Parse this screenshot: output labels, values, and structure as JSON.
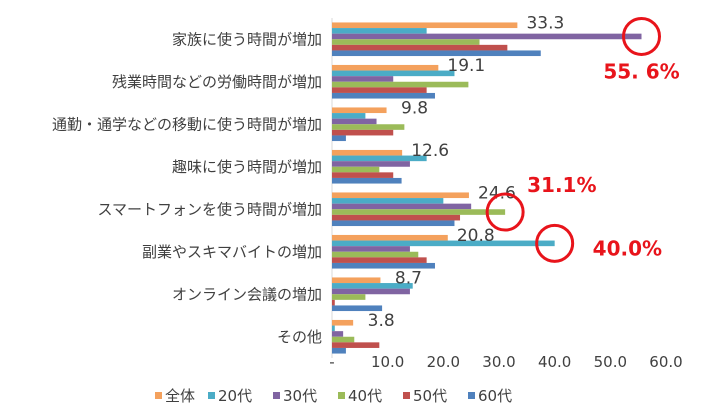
{
  "chart_data": {
    "type": "bar",
    "orientation": "horizontal",
    "categories": [
      "家族に使う時間が増加",
      "残業時間などの労働時間が増加",
      "通勤・通学などの移動に使う時間が増加",
      "趣味に使う時間が増加",
      "スマートフォンを使う時間が増加",
      "副業やスキマバイトの増加",
      "オンライン会議の増加",
      "その他"
    ],
    "series": [
      {
        "name": "全体",
        "color": "#f4a15d",
        "values": [
          33.3,
          19.1,
          9.8,
          12.6,
          24.6,
          20.8,
          8.7,
          3.8
        ]
      },
      {
        "name": "20代",
        "color": "#4bacc6",
        "values": [
          17.0,
          22.0,
          6.0,
          17.0,
          20.0,
          40.0,
          14.5,
          0.5
        ]
      },
      {
        "name": "30代",
        "color": "#8064a2",
        "values": [
          55.6,
          11.0,
          8.0,
          14.0,
          25.0,
          14.0,
          14.0,
          2.0
        ]
      },
      {
        "name": "40代",
        "color": "#9bbb59",
        "values": [
          26.5,
          24.5,
          13.0,
          8.5,
          31.1,
          15.5,
          6.0,
          4.0
        ]
      },
      {
        "name": "50代",
        "color": "#c0504d",
        "values": [
          31.5,
          17.0,
          11.0,
          11.0,
          23.0,
          17.0,
          0.5,
          8.5
        ]
      },
      {
        "name": "60代",
        "color": "#4f81bd",
        "values": [
          37.5,
          18.5,
          2.5,
          12.5,
          22.0,
          18.5,
          9.0,
          2.5
        ]
      }
    ],
    "data_labels": [
      "33.3",
      "19.1",
      "9.8",
      "12.6",
      "24.6",
      "20.8",
      "8.7",
      "3.8"
    ],
    "x_ticks": [
      "-",
      "10.0",
      "20.0",
      "30.0",
      "40.0",
      "50.0",
      "60.0"
    ],
    "xlim": [
      0,
      60
    ],
    "legend_position": "bottom",
    "callouts": [
      {
        "text": "55. 6%",
        "value": 55.6,
        "category": 0,
        "series": 2
      },
      {
        "text": "31.1%",
        "value": 31.1,
        "category": 4,
        "series": 3
      },
      {
        "text": "40.0%",
        "value": 40.0,
        "category": 5,
        "series": 1
      }
    ],
    "callout_color": "#e8141b",
    "grid": false
  }
}
